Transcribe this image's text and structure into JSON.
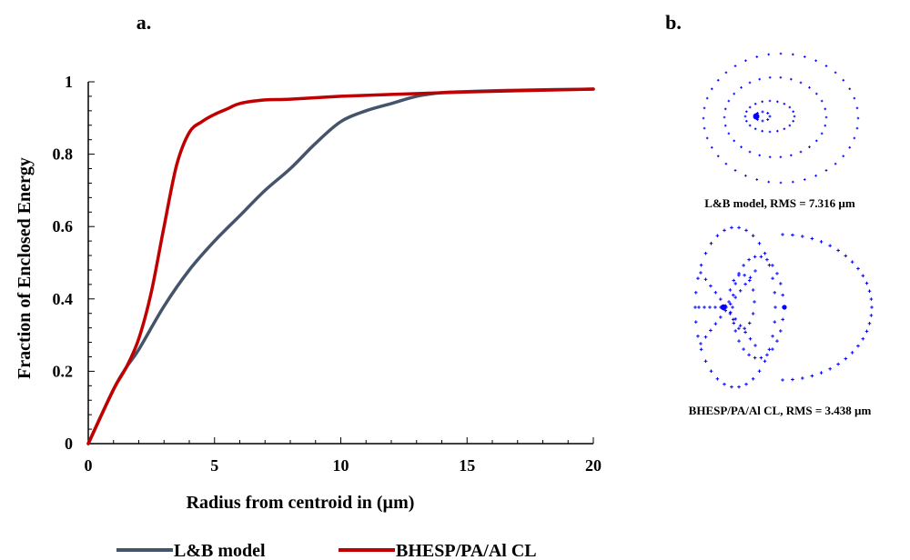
{
  "panels": {
    "a_label": "a.",
    "b_label": "b."
  },
  "colors": {
    "axis": "#000000",
    "series_lb": "#44546a",
    "series_bhesp": "#c00000",
    "spot": "#0000ff"
  },
  "chart_data": {
    "type": "line",
    "title": "",
    "xlabel": "Radius from centroid in (µm)",
    "ylabel": "Fraction of Enclosed Energy",
    "xlim": [
      0,
      20
    ],
    "ylim": [
      0,
      1
    ],
    "xticks": [
      "0",
      "5",
      "10",
      "15",
      "20"
    ],
    "yticks": [
      "0",
      "0.2",
      "0.4",
      "0.6",
      "0.8",
      "1"
    ],
    "grid": false,
    "legend_position": "bottom",
    "series": [
      {
        "name": "L&B model",
        "color": "#44546a",
        "x": [
          0,
          1,
          1.5,
          2,
          3,
          4,
          5,
          6,
          7,
          8,
          9,
          10,
          11,
          12,
          13,
          14,
          15,
          16,
          17,
          18,
          19,
          20
        ],
        "y": [
          0,
          0.15,
          0.21,
          0.26,
          0.38,
          0.48,
          0.56,
          0.63,
          0.7,
          0.76,
          0.83,
          0.89,
          0.92,
          0.94,
          0.96,
          0.97,
          0.973,
          0.975,
          0.977,
          0.978,
          0.979,
          0.98
        ]
      },
      {
        "name": "BHESP/PA/Al CL",
        "color": "#c00000",
        "x": [
          0,
          1,
          1.5,
          2,
          2.5,
          3,
          3.5,
          4,
          4.5,
          5,
          5.5,
          6,
          7,
          8,
          10,
          12,
          15,
          20
        ],
        "y": [
          0,
          0.15,
          0.21,
          0.29,
          0.42,
          0.6,
          0.77,
          0.86,
          0.89,
          0.91,
          0.925,
          0.94,
          0.95,
          0.952,
          0.96,
          0.965,
          0.972,
          0.98
        ]
      }
    ]
  },
  "spot_diagrams": [
    {
      "caption": "L&B model, RMS = 7.316 µm"
    },
    {
      "caption": "BHESP/PA/Al CL, RMS = 3.438 µm"
    }
  ]
}
